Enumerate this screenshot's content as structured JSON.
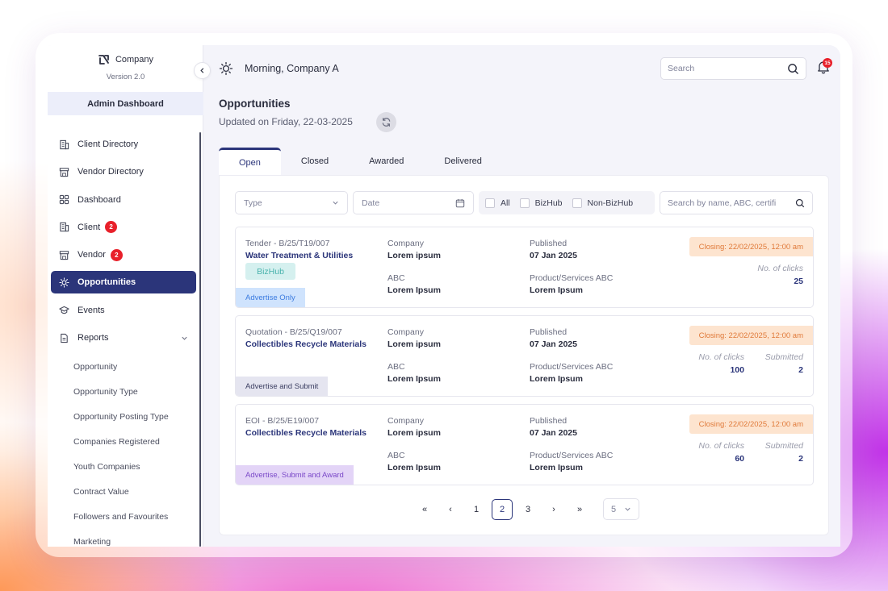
{
  "brand": {
    "name": "Company",
    "version": "Version 2.0"
  },
  "sidebar": {
    "title": "Admin Dashboard",
    "items": [
      {
        "label": "Client Directory",
        "icon": "building-icon"
      },
      {
        "label": "Vendor Directory",
        "icon": "store-icon"
      },
      {
        "label": "Dashboard",
        "icon": "grid-icon"
      },
      {
        "label": "Client",
        "icon": "building-icon",
        "badge": "2"
      },
      {
        "label": "Vendor",
        "icon": "store-icon",
        "badge": "2"
      },
      {
        "label": "Opportunities",
        "icon": "lightbulb-icon",
        "active": true
      },
      {
        "label": "Events",
        "icon": "graduation-cap-icon"
      },
      {
        "label": "Reports",
        "icon": "document-icon"
      }
    ],
    "report_subitems": [
      "Opportunity",
      "Opportunity Type",
      "Opportunity Posting Type",
      "Companies Registered",
      "Youth Companies",
      "Contract Value",
      "Followers and Favourites",
      "Marketing"
    ]
  },
  "header": {
    "greeting_prefix": "Morning,",
    "greeting_name": "Company A",
    "search_placeholder": "Search",
    "notification_count": "15"
  },
  "page": {
    "title": "Opportunities",
    "updated": "Updated on Friday, 22-03-2025"
  },
  "tabs": [
    {
      "label": "Open",
      "active": true
    },
    {
      "label": "Closed"
    },
    {
      "label": "Awarded"
    },
    {
      "label": "Delivered"
    }
  ],
  "filters": {
    "type_placeholder": "Type",
    "date_placeholder": "Date",
    "checkbox_all": "All",
    "checkbox_bizhub": "BizHub",
    "checkbox_nonbizhub": "Non-BizHub",
    "search_placeholder": "Search by name, ABC, certifi"
  },
  "cards": [
    {
      "ref": "Tender - B/25/T19/007",
      "title": "Water Treatment & Utilities",
      "tag": "BizHub",
      "company_label": "Company",
      "company_value": "Lorem ipsum",
      "abc_label": "ABC",
      "abc_value": "Lorem Ipsum",
      "published_label": "Published",
      "published_value": "07 Jan 2025",
      "product_label": "Product/Services ABC",
      "product_value": "Lorem Ipsum",
      "closing": "Closing: 22/02/2025, 12:00 am",
      "clicks_label": "No. of clicks",
      "clicks_value": "25",
      "mode": "Advertise Only",
      "mode_colors": {
        "bg": "#cfe3fd",
        "fg": "#3b7be0"
      }
    },
    {
      "ref": "Quotation - B/25/Q19/007",
      "title": "Collectibles Recycle Materials",
      "company_label": "Company",
      "company_value": "Lorem ipsum",
      "abc_label": "ABC",
      "abc_value": "Lorem Ipsum",
      "published_label": "Published",
      "published_value": "07 Jan 2025",
      "product_label": "Product/Services ABC",
      "product_value": "Lorem Ipsum",
      "closing": "Closing: 22/02/2025, 12:00 am",
      "clicks_label": "No. of clicks",
      "clicks_value": "100",
      "submitted_label": "Submitted",
      "submitted_value": "2",
      "mode": "Advertise and Submit",
      "mode_colors": {
        "bg": "#e5e5f0",
        "fg": "#3a3d60"
      }
    },
    {
      "ref": "EOI - B/25/E19/007",
      "title": "Collectibles Recycle Materials",
      "company_label": "Company",
      "company_value": "Lorem ipsum",
      "abc_label": "ABC",
      "abc_value": "Lorem Ipsum",
      "published_label": "Published",
      "published_value": "07 Jan 2025",
      "product_label": "Product/Services ABC",
      "product_value": "Lorem Ipsum",
      "closing": "Closing: 22/02/2025, 12:00 am",
      "clicks_label": "No. of clicks",
      "clicks_value": "60",
      "submitted_label": "Submitted",
      "submitted_value": "2",
      "mode": "Advertise, Submit and Award",
      "mode_colors": {
        "bg": "#e3d4f7",
        "fg": "#7a48c8"
      }
    }
  ],
  "pagination": {
    "first": "«",
    "prev": "‹",
    "pages": [
      "1",
      "2",
      "3"
    ],
    "current": "2",
    "next": "›",
    "last": "»",
    "page_size": "5"
  },
  "colors": {
    "primary": "#2b357a",
    "badge": "#e8202a",
    "closing_bg": "#fde4cf",
    "closing_fg": "#e07a3a"
  }
}
